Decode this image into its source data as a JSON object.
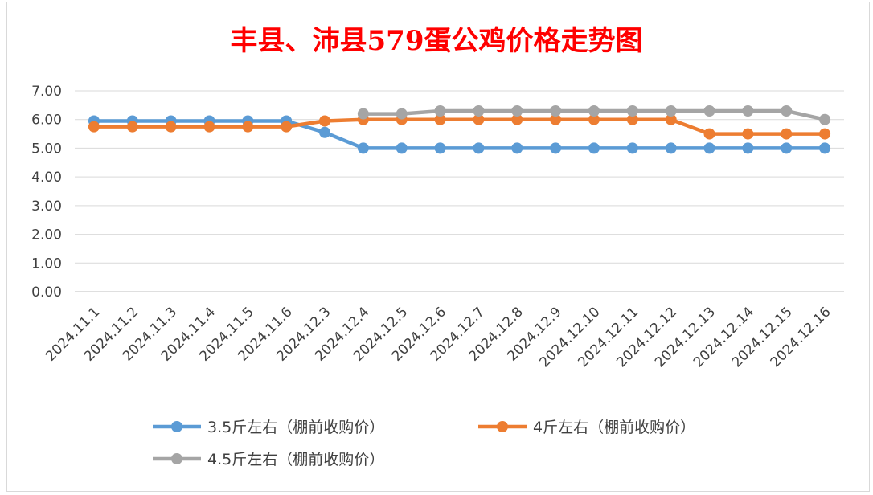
{
  "colors": {
    "title": "#ff0000",
    "grid": "#d9d9d9",
    "axis": "#bfbfbf",
    "text": "#404040"
  },
  "chart_data": {
    "type": "line",
    "title": "丰县、沛县579蛋公鸡价格走势图",
    "xlabel": "",
    "ylabel": "",
    "ylim": [
      0,
      7
    ],
    "y_ticks": [
      "0.00",
      "1.00",
      "2.00",
      "3.00",
      "4.00",
      "5.00",
      "6.00",
      "7.00"
    ],
    "grid": true,
    "legend_position": "bottom",
    "categories": [
      "2024.11.1",
      "2024.11.2",
      "2024.11.3",
      "2024.11.4",
      "2024.11.5",
      "2024.11.6",
      "2024.12.3",
      "2024.12.4",
      "2024.12.5",
      "2024.12.6",
      "2024.12.7",
      "2024.12.8",
      "2024.12.9",
      "2024.12.10",
      "2024.12.11",
      "2024.12.12",
      "2024.12.13",
      "2024.12.14",
      "2024.12.15",
      "2024.12.16"
    ],
    "series": [
      {
        "name": "3.5斤左右（棚前收购价）",
        "color": "#5b9bd5",
        "values": [
          5.95,
          5.95,
          5.95,
          5.95,
          5.95,
          5.95,
          5.55,
          5.0,
          5.0,
          5.0,
          5.0,
          5.0,
          5.0,
          5.0,
          5.0,
          5.0,
          5.0,
          5.0,
          5.0,
          5.0
        ]
      },
      {
        "name": "4斤左右（棚前收购价）",
        "color": "#ed7d31",
        "values": [
          5.75,
          5.75,
          5.75,
          5.75,
          5.75,
          5.75,
          5.95,
          6.0,
          6.0,
          6.0,
          6.0,
          6.0,
          6.0,
          6.0,
          6.0,
          6.0,
          5.5,
          5.5,
          5.5,
          5.5
        ]
      },
      {
        "name": "4.5斤左右（棚前收购价）",
        "color": "#a5a5a5",
        "values": [
          null,
          null,
          null,
          null,
          null,
          null,
          null,
          6.2,
          6.2,
          6.3,
          6.3,
          6.3,
          6.3,
          6.3,
          6.3,
          6.3,
          6.3,
          6.3,
          6.3,
          6.0
        ]
      }
    ]
  }
}
